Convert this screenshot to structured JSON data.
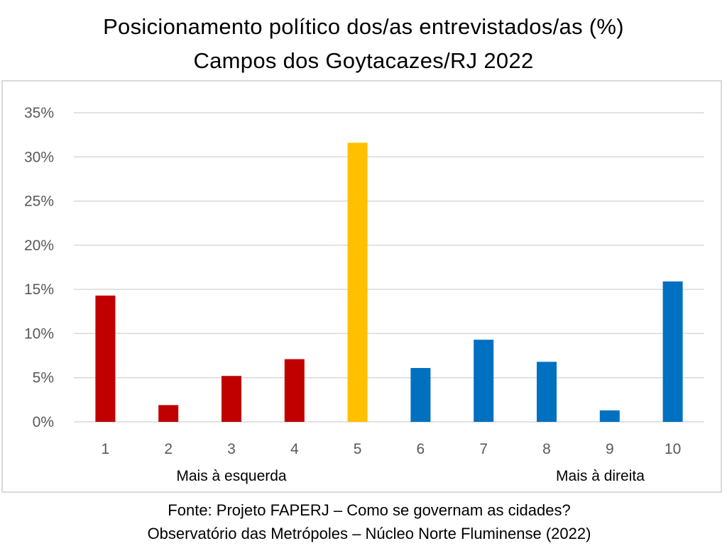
{
  "chart_data": {
    "type": "bar",
    "title_lines": [
      "Posicionamento político dos/as entrevistados/as (%)",
      "Campos dos Goytacazes/RJ 2022"
    ],
    "categories": [
      "1",
      "2",
      "3",
      "4",
      "5",
      "6",
      "7",
      "8",
      "9",
      "10"
    ],
    "values": [
      14.3,
      1.9,
      5.2,
      7.1,
      31.6,
      6.1,
      9.3,
      6.8,
      1.3,
      15.9
    ],
    "bar_colors": [
      "#c00000",
      "#c00000",
      "#c00000",
      "#c00000",
      "#ffc000",
      "#0070c0",
      "#0070c0",
      "#0070c0",
      "#0070c0",
      "#0070c0"
    ],
    "ylim": [
      0,
      35
    ],
    "yticks": [
      0,
      5,
      10,
      15,
      20,
      25,
      30,
      35
    ],
    "ytick_labels": [
      "0%",
      "5%",
      "10%",
      "15%",
      "20%",
      "25%",
      "30%",
      "35%"
    ],
    "grid": true,
    "annotations": {
      "left": "Mais à esquerda",
      "right": "Mais à direita"
    }
  },
  "source": {
    "line1": "Fonte: Projeto FAPERJ – Como se governam as cidades?",
    "line2": "Observatório das Metrópoles – Núcleo Norte Fluminense (2022)"
  }
}
